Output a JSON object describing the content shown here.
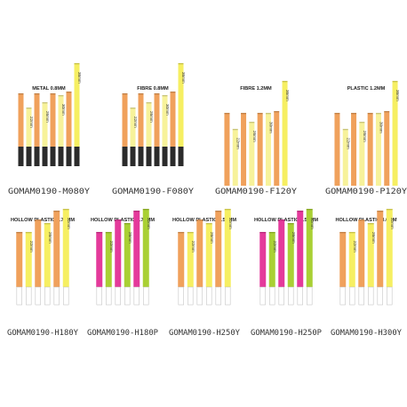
{
  "colors": {
    "orange": "#f0a15c",
    "orange_dark": "#e8893b",
    "yellow": "#f6ef62",
    "yellow_pale": "#f7f29a",
    "magenta": "#e43a9b",
    "lime": "#a9d034",
    "black": "#2b2b2b",
    "white_tip": "#ffffff",
    "text": "#333333"
  },
  "products": [
    {
      "title": "METAL 0.8MM",
      "code": "GOMAM0190-M080Y",
      "tip": "black",
      "bars": [
        {
          "color": "orange"
        },
        {
          "color": "yellow_pale",
          "label": "22mm"
        },
        {
          "color": "orange"
        },
        {
          "color": "yellow_pale",
          "label": "26mm"
        },
        {
          "color": "orange"
        },
        {
          "color": "yellow_pale",
          "label": "30mm"
        },
        {
          "color": "orange"
        },
        {
          "color": "yellow",
          "label": "36mm"
        }
      ]
    },
    {
      "title": "FIBRE 0.8MM",
      "code": "GOMAM0190-F080Y",
      "tip": "black",
      "bars": [
        {
          "color": "orange"
        },
        {
          "color": "yellow_pale",
          "label": "22mm"
        },
        {
          "color": "orange"
        },
        {
          "color": "yellow_pale",
          "label": "26mm"
        },
        {
          "color": "orange"
        },
        {
          "color": "yellow_pale",
          "label": "30mm"
        },
        {
          "color": "orange"
        },
        {
          "color": "yellow",
          "label": "36mm"
        }
      ]
    },
    {
      "title": "FIBRE 1.2MM",
      "code": "GOMAM0190-F120Y",
      "tip": "none",
      "bars": [
        {
          "color": "orange"
        },
        {
          "color": "yellow_pale",
          "label": "22mm"
        },
        {
          "color": "orange"
        },
        {
          "color": "yellow_pale",
          "label": "26mm"
        },
        {
          "color": "orange"
        },
        {
          "color": "yellow_pale",
          "label": "30mm"
        },
        {
          "color": "orange"
        },
        {
          "color": "yellow",
          "label": "36mm"
        }
      ]
    },
    {
      "title": "PLASTIC 1.2MM",
      "code": "GOMAM0190-P120Y",
      "tip": "none",
      "bars": [
        {
          "color": "orange"
        },
        {
          "color": "yellow_pale",
          "label": "22mm"
        },
        {
          "color": "orange"
        },
        {
          "color": "yellow_pale",
          "label": "26mm"
        },
        {
          "color": "orange"
        },
        {
          "color": "yellow_pale",
          "label": "30mm"
        },
        {
          "color": "orange"
        },
        {
          "color": "yellow",
          "label": "36mm"
        }
      ]
    },
    {
      "title": "HOLLOW PLASTIC 1.75MM",
      "code": "GOMAM0190-H180Y",
      "tip": "white",
      "bars": [
        {
          "color": "orange"
        },
        {
          "color": "yellow",
          "label": "22mm"
        },
        {
          "color": "orange"
        },
        {
          "color": "yellow",
          "label": "26mm"
        },
        {
          "color": "orange"
        },
        {
          "color": "yellow",
          "label": "32mm"
        }
      ]
    },
    {
      "title": "HOLLOW PLASTIC 1.75MM",
      "code": "GOMAM0190-H180P",
      "tip": "white",
      "bars": [
        {
          "color": "magenta"
        },
        {
          "color": "lime",
          "label": "22mm"
        },
        {
          "color": "magenta"
        },
        {
          "color": "lime",
          "label": "26mm"
        },
        {
          "color": "magenta"
        },
        {
          "color": "lime",
          "label": "32mm"
        }
      ]
    },
    {
      "title": "HOLLOW PLASTIC 2.50MM",
      "code": "GOMAM0190-H250Y",
      "tip": "white",
      "bars": [
        {
          "color": "orange"
        },
        {
          "color": "yellow",
          "label": "22mm"
        },
        {
          "color": "orange"
        },
        {
          "color": "yellow",
          "label": "26mm"
        },
        {
          "color": "orange"
        },
        {
          "color": "yellow",
          "label": "32mm"
        }
      ]
    },
    {
      "title": "HOLLOW PLASTIC 2.50MM",
      "code": "GOMAM0190-H250P",
      "tip": "white",
      "bars": [
        {
          "color": "magenta"
        },
        {
          "color": "lime",
          "label": "22mm"
        },
        {
          "color": "magenta"
        },
        {
          "color": "lime",
          "label": "26mm"
        },
        {
          "color": "magenta"
        },
        {
          "color": "lime",
          "label": "32mm"
        }
      ]
    },
    {
      "title": "HOLLOW PLASTIC 3.0MM",
      "code": "GOMAM0190-H300Y",
      "tip": "white",
      "bars": [
        {
          "color": "orange"
        },
        {
          "color": "yellow",
          "label": "22mm"
        },
        {
          "color": "orange"
        },
        {
          "color": "yellow",
          "label": "26mm"
        },
        {
          "color": "orange"
        },
        {
          "color": "yellow",
          "label": "32mm"
        }
      ]
    }
  ]
}
